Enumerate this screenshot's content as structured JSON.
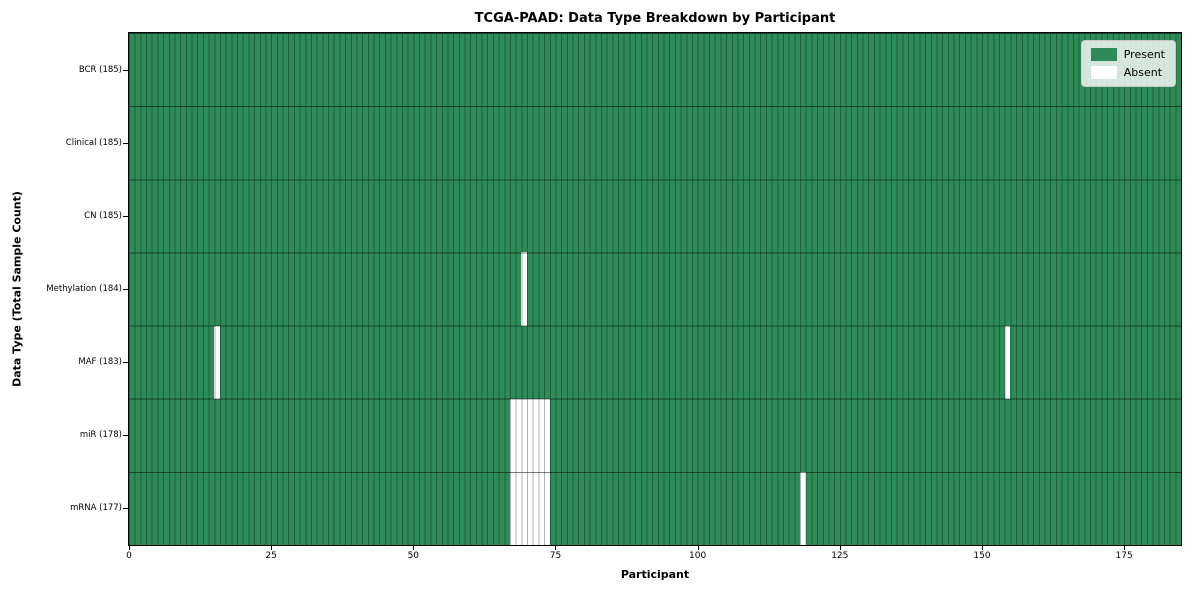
{
  "chart_data": {
    "type": "heatmap",
    "title": "TCGA-PAAD: Data Type Breakdown by Participant",
    "xlabel": "Participant",
    "ylabel": "Data Type (Total Sample Count)",
    "xlim": [
      0,
      185
    ],
    "n_participants": 185,
    "x_ticks": [
      0,
      25,
      50,
      75,
      100,
      125,
      150,
      175
    ],
    "grid": "per-participant vertical lines and row separator lines, black with low alpha",
    "legend_position": "upper right, inside plot",
    "rows": [
      {
        "label": "BCR (185)",
        "data_type": "BCR",
        "total": 185,
        "absent_participants": []
      },
      {
        "label": "Clinical (185)",
        "data_type": "Clinical",
        "total": 185,
        "absent_participants": []
      },
      {
        "label": "CN (185)",
        "data_type": "CN",
        "total": 185,
        "absent_participants": []
      },
      {
        "label": "Methylation (184)",
        "data_type": "Methylation",
        "total": 184,
        "absent_participants": [
          69
        ]
      },
      {
        "label": "MAF (183)",
        "data_type": "MAF",
        "total": 183,
        "absent_participants": [
          15,
          154
        ]
      },
      {
        "label": "miR (178)",
        "data_type": "miR",
        "total": 178,
        "absent_participants": [
          67,
          68,
          69,
          70,
          71,
          72,
          73
        ]
      },
      {
        "label": "mRNA (177)",
        "data_type": "mRNA",
        "total": 177,
        "absent_participants": [
          67,
          68,
          69,
          70,
          71,
          72,
          73,
          118
        ]
      }
    ],
    "legend": [
      {
        "label": "Present",
        "color": "#2e8b57"
      },
      {
        "label": "Absent",
        "color": "#ffffff"
      }
    ],
    "colors": {
      "present": "#2e8b57",
      "absent": "#ffffff",
      "vertical_gridline": "rgba(0,0,0,0.30)",
      "row_separator": "rgba(0,0,0,0.50)",
      "axis": "#000000"
    }
  }
}
